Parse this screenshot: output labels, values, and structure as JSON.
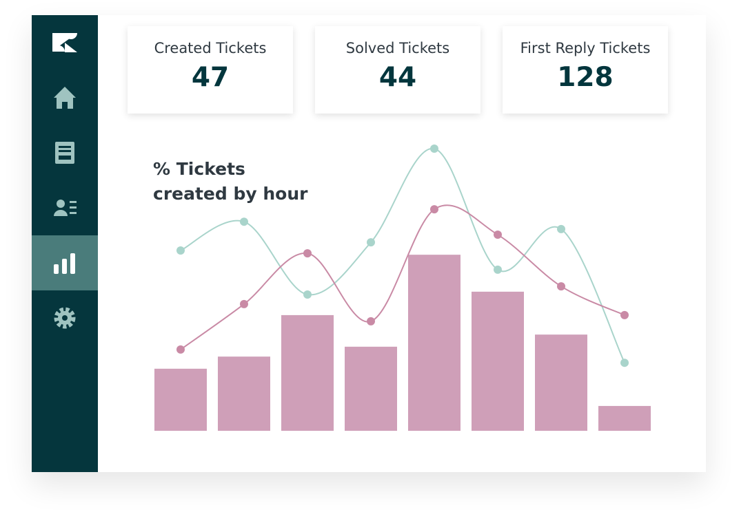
{
  "kpis": [
    {
      "label": "Created Tickets",
      "value": 47
    },
    {
      "label": "Solved Tickets",
      "value": 44
    },
    {
      "label": "First Reply Tickets",
      "value": 128
    }
  ],
  "chart_data": {
    "type": "bar",
    "title": "% Tickets created by hour",
    "categories": [
      null,
      null,
      null,
      null,
      null,
      null,
      null,
      null
    ],
    "ylim": [
      0,
      100
    ],
    "series": [
      {
        "type": "bar",
        "color": "#cf9fb8",
        "values": [
          22,
          26.3,
          41,
          29.8,
          62.4,
          49.3,
          34.1,
          8.8
        ]
      },
      {
        "type": "line",
        "color": "#a9d4cb",
        "values": [
          63.9,
          74.1,
          48.3,
          66.8,
          100,
          57.1,
          71.5,
          24.1
        ]
      },
      {
        "type": "line",
        "color": "#c98aa5",
        "values": [
          28.8,
          44.9,
          62.9,
          38.8,
          78.5,
          69.5,
          51.2,
          41.0
        ]
      }
    ]
  }
}
